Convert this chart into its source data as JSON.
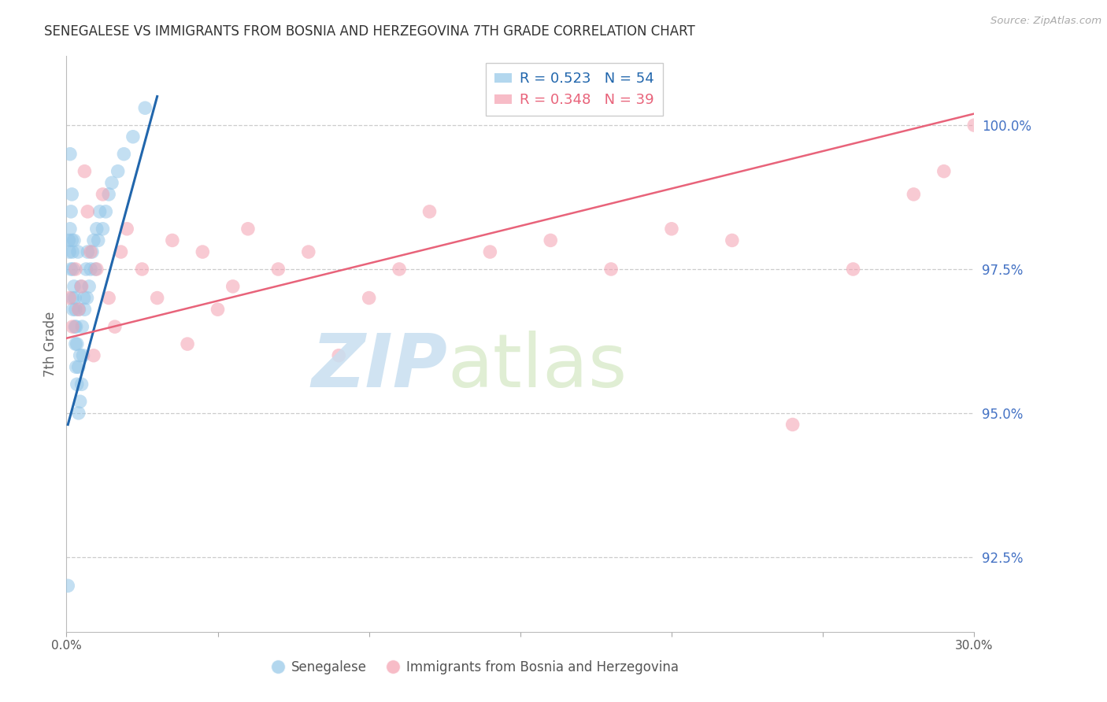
{
  "title": "SENEGALESE VS IMMIGRANTS FROM BOSNIA AND HERZEGOVINA 7TH GRADE CORRELATION CHART",
  "source": "Source: ZipAtlas.com",
  "ylabel": "7th Grade",
  "ylabel_right_ticks": [
    100.0,
    97.5,
    95.0,
    92.5
  ],
  "ylabel_right_labels": [
    "100.0%",
    "97.5%",
    "95.0%",
    "92.5%"
  ],
  "xmin": 0.0,
  "xmax": 30.0,
  "ymin": 91.2,
  "ymax": 101.2,
  "blue_R": 0.523,
  "blue_N": 54,
  "pink_R": 0.348,
  "pink_N": 39,
  "blue_color": "#93c6e8",
  "pink_color": "#f4a0b0",
  "blue_line_color": "#2166ac",
  "pink_line_color": "#e8637a",
  "title_color": "#333333",
  "axis_label_color": "#4472c4",
  "blue_scatter_x": [
    0.05,
    0.08,
    0.1,
    0.12,
    0.12,
    0.15,
    0.15,
    0.18,
    0.18,
    0.2,
    0.2,
    0.22,
    0.22,
    0.25,
    0.25,
    0.28,
    0.28,
    0.3,
    0.3,
    0.32,
    0.32,
    0.35,
    0.35,
    0.38,
    0.4,
    0.4,
    0.42,
    0.45,
    0.45,
    0.48,
    0.5,
    0.52,
    0.55,
    0.58,
    0.6,
    0.65,
    0.68,
    0.7,
    0.75,
    0.8,
    0.85,
    0.9,
    0.95,
    1.0,
    1.05,
    1.1,
    1.2,
    1.3,
    1.4,
    1.5,
    1.7,
    1.9,
    2.2,
    2.6
  ],
  "blue_scatter_y": [
    92.0,
    98.0,
    97.8,
    98.2,
    99.5,
    97.5,
    98.5,
    98.0,
    98.8,
    97.0,
    97.8,
    96.8,
    97.5,
    97.2,
    98.0,
    96.5,
    97.0,
    96.2,
    96.8,
    95.8,
    96.5,
    95.5,
    96.2,
    97.8,
    95.0,
    95.8,
    96.8,
    95.2,
    96.0,
    97.2,
    95.5,
    96.5,
    96.0,
    97.0,
    96.8,
    97.5,
    97.0,
    97.8,
    97.2,
    97.5,
    97.8,
    98.0,
    97.5,
    98.2,
    98.0,
    98.5,
    98.2,
    98.5,
    98.8,
    99.0,
    99.2,
    99.5,
    99.8,
    100.3
  ],
  "pink_scatter_x": [
    0.1,
    0.2,
    0.3,
    0.4,
    0.5,
    0.6,
    0.7,
    0.8,
    0.9,
    1.0,
    1.2,
    1.4,
    1.6,
    1.8,
    2.0,
    2.5,
    3.0,
    3.5,
    4.0,
    4.5,
    5.0,
    5.5,
    6.0,
    7.0,
    8.0,
    9.0,
    10.0,
    11.0,
    12.0,
    14.0,
    16.0,
    18.0,
    20.0,
    22.0,
    24.0,
    26.0,
    28.0,
    29.0,
    30.0
  ],
  "pink_scatter_y": [
    97.0,
    96.5,
    97.5,
    96.8,
    97.2,
    99.2,
    98.5,
    97.8,
    96.0,
    97.5,
    98.8,
    97.0,
    96.5,
    97.8,
    98.2,
    97.5,
    97.0,
    98.0,
    96.2,
    97.8,
    96.8,
    97.2,
    98.2,
    97.5,
    97.8,
    96.0,
    97.0,
    97.5,
    98.5,
    97.8,
    98.0,
    97.5,
    98.2,
    98.0,
    94.8,
    97.5,
    98.8,
    99.2,
    100.0
  ],
  "blue_trend_x": [
    0.05,
    3.0
  ],
  "blue_trend_y": [
    94.8,
    100.5
  ],
  "pink_trend_x": [
    0.0,
    30.0
  ],
  "pink_trend_y": [
    96.3,
    100.2
  ]
}
